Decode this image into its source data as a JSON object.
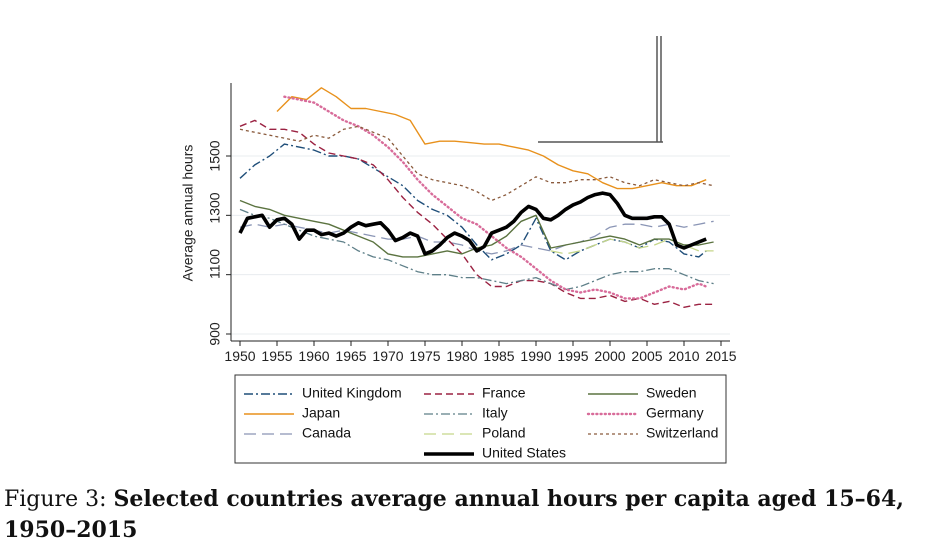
{
  "chart_data": {
    "type": "line",
    "ylabel": "Average annual hours",
    "xlabel": "",
    "xlim": [
      1950,
      2015
    ],
    "ylim": [
      900,
      1700
    ],
    "x_ticks": [
      "1950",
      "1955",
      "1960",
      "1965",
      "1970",
      "1975",
      "1980",
      "1985",
      "1990",
      "1995",
      "2000",
      "2005",
      "2010",
      "2015"
    ],
    "y_ticks": [
      "900",
      "1100",
      "1300",
      "1500"
    ],
    "grid": true,
    "legend_position": "below",
    "series": [
      {
        "name": "United Kingdom",
        "color": "#1f4e79",
        "style": "dashdot",
        "width": 1.4,
        "x": [
          1950,
          1952,
          1954,
          1956,
          1958,
          1960,
          1962,
          1964,
          1966,
          1968,
          1970,
          1972,
          1974,
          1976,
          1978,
          1980,
          1982,
          1984,
          1986,
          1988,
          1990,
          1992,
          1994,
          1996,
          1998,
          2000,
          2002,
          2004,
          2006,
          2008,
          2010,
          2012,
          2013
        ],
        "y": [
          1425,
          1470,
          1500,
          1540,
          1530,
          1520,
          1500,
          1500,
          1490,
          1460,
          1430,
          1400,
          1350,
          1320,
          1300,
          1260,
          1200,
          1150,
          1170,
          1200,
          1290,
          1180,
          1150,
          1180,
          1200,
          1220,
          1210,
          1190,
          1220,
          1210,
          1170,
          1160,
          1180
        ]
      },
      {
        "name": "Japan",
        "color": "#e8911c",
        "style": "solid",
        "width": 1.4,
        "x": [
          1955,
          1957,
          1959,
          1961,
          1963,
          1965,
          1967,
          1969,
          1971,
          1973,
          1975,
          1977,
          1979,
          1981,
          1983,
          1985,
          1987,
          1989,
          1991,
          1993,
          1995,
          1997,
          1999,
          2001,
          2003,
          2005,
          2007,
          2009,
          2011,
          2013
        ],
        "y": [
          1650,
          1700,
          1690,
          1730,
          1700,
          1660,
          1660,
          1650,
          1640,
          1620,
          1540,
          1550,
          1550,
          1545,
          1540,
          1540,
          1530,
          1520,
          1500,
          1470,
          1450,
          1440,
          1410,
          1390,
          1390,
          1400,
          1410,
          1400,
          1400,
          1420
        ]
      },
      {
        "name": "Canada",
        "color": "#8a95b5",
        "style": "longdash",
        "width": 1.3,
        "x": [
          1950,
          1952,
          1954,
          1956,
          1958,
          1960,
          1962,
          1964,
          1966,
          1968,
          1970,
          1972,
          1974,
          1976,
          1978,
          1980,
          1982,
          1984,
          1986,
          1988,
          1990,
          1992,
          1994,
          1996,
          1998,
          2000,
          2002,
          2004,
          2006,
          2008,
          2010,
          2012,
          2014
        ],
        "y": [
          1260,
          1270,
          1260,
          1270,
          1260,
          1250,
          1240,
          1250,
          1240,
          1230,
          1220,
          1220,
          1230,
          1210,
          1210,
          1200,
          1180,
          1170,
          1180,
          1200,
          1190,
          1180,
          1200,
          1210,
          1230,
          1260,
          1270,
          1270,
          1260,
          1270,
          1260,
          1270,
          1280
        ]
      },
      {
        "name": "France",
        "color": "#9b2242",
        "style": "dashed",
        "width": 1.4,
        "x": [
          1950,
          1952,
          1954,
          1956,
          1958,
          1960,
          1962,
          1964,
          1966,
          1968,
          1970,
          1972,
          1974,
          1976,
          1978,
          1980,
          1982,
          1984,
          1986,
          1988,
          1990,
          1992,
          1994,
          1996,
          1998,
          2000,
          2002,
          2004,
          2006,
          2008,
          2010,
          2012,
          2014
        ],
        "y": [
          1600,
          1620,
          1590,
          1590,
          1580,
          1540,
          1510,
          1500,
          1490,
          1470,
          1420,
          1360,
          1310,
          1270,
          1220,
          1170,
          1100,
          1060,
          1060,
          1080,
          1080,
          1070,
          1040,
          1020,
          1020,
          1030,
          1010,
          1020,
          1000,
          1010,
          990,
          1000,
          1000
        ]
      },
      {
        "name": "Italy",
        "color": "#5e7f88",
        "style": "dashdot",
        "width": 1.3,
        "x": [
          1950,
          1952,
          1954,
          1956,
          1958,
          1960,
          1962,
          1964,
          1966,
          1968,
          1970,
          1972,
          1974,
          1976,
          1978,
          1980,
          1982,
          1984,
          1986,
          1988,
          1990,
          1992,
          1994,
          1996,
          1998,
          2000,
          2002,
          2004,
          2006,
          2008,
          2010,
          2012,
          2014
        ],
        "y": [
          1320,
          1300,
          1290,
          1270,
          1250,
          1230,
          1220,
          1210,
          1180,
          1160,
          1150,
          1130,
          1110,
          1100,
          1100,
          1090,
          1090,
          1080,
          1070,
          1080,
          1090,
          1070,
          1050,
          1060,
          1080,
          1100,
          1110,
          1110,
          1120,
          1120,
          1100,
          1080,
          1070
        ]
      },
      {
        "name": "Poland",
        "color": "#c5d68a",
        "style": "longdash",
        "width": 1.3,
        "x": [
          1992,
          1994,
          1996,
          1998,
          2000,
          2002,
          2004,
          2006,
          2008,
          2010,
          2012,
          2014
        ],
        "y": [
          1180,
          1170,
          1180,
          1200,
          1220,
          1210,
          1190,
          1200,
          1220,
          1200,
          1180,
          1180
        ]
      },
      {
        "name": "Sweden",
        "color": "#5b7340",
        "style": "solid",
        "width": 1.4,
        "x": [
          1950,
          1952,
          1954,
          1956,
          1958,
          1960,
          1962,
          1964,
          1966,
          1968,
          1970,
          1972,
          1974,
          1976,
          1978,
          1980,
          1982,
          1984,
          1986,
          1988,
          1990,
          1992,
          1994,
          1996,
          1998,
          2000,
          2002,
          2004,
          2006,
          2008,
          2010,
          2012,
          2014
        ],
        "y": [
          1350,
          1330,
          1320,
          1300,
          1290,
          1280,
          1270,
          1250,
          1230,
          1210,
          1170,
          1160,
          1160,
          1170,
          1180,
          1170,
          1190,
          1200,
          1230,
          1280,
          1300,
          1190,
          1200,
          1210,
          1220,
          1230,
          1220,
          1200,
          1220,
          1220,
          1200,
          1200,
          1210
        ]
      },
      {
        "name": "Germany",
        "color": "#d86c9a",
        "style": "dotted",
        "width": 2.4,
        "x": [
          1956,
          1958,
          1960,
          1962,
          1964,
          1966,
          1968,
          1970,
          1972,
          1974,
          1976,
          1978,
          1980,
          1982,
          1984,
          1986,
          1988,
          1990,
          1992,
          1994,
          1996,
          1998,
          2000,
          2002,
          2004,
          2006,
          2008,
          2010,
          2012,
          2013
        ],
        "y": [
          1700,
          1690,
          1680,
          1650,
          1620,
          1600,
          1570,
          1530,
          1480,
          1420,
          1370,
          1330,
          1290,
          1270,
          1230,
          1190,
          1160,
          1120,
          1080,
          1050,
          1040,
          1050,
          1040,
          1020,
          1020,
          1040,
          1060,
          1050,
          1070,
          1060
        ]
      },
      {
        "name": "Switzerland",
        "color": "#8a5a3c",
        "style": "shortdash",
        "width": 1.3,
        "x": [
          1950,
          1952,
          1954,
          1956,
          1958,
          1960,
          1962,
          1964,
          1966,
          1968,
          1970,
          1972,
          1974,
          1976,
          1978,
          1980,
          1982,
          1984,
          1986,
          1988,
          1990,
          1992,
          1994,
          1996,
          1998,
          2000,
          2002,
          2004,
          2006,
          2008,
          2010,
          2012,
          2014
        ],
        "y": [
          1590,
          1580,
          1570,
          1560,
          1550,
          1570,
          1560,
          1590,
          1600,
          1580,
          1560,
          1500,
          1440,
          1420,
          1410,
          1400,
          1380,
          1350,
          1370,
          1400,
          1430,
          1410,
          1410,
          1420,
          1420,
          1430,
          1410,
          1400,
          1420,
          1410,
          1400,
          1410,
          1400
        ]
      },
      {
        "name": "United States",
        "color": "#000000",
        "style": "solid",
        "width": 3.6,
        "x": [
          1950,
          1951,
          1952,
          1953,
          1954,
          1955,
          1956,
          1957,
          1958,
          1959,
          1960,
          1961,
          1962,
          1963,
          1964,
          1965,
          1966,
          1967,
          1968,
          1969,
          1970,
          1971,
          1972,
          1973,
          1974,
          1975,
          1976,
          1977,
          1978,
          1979,
          1980,
          1981,
          1982,
          1983,
          1984,
          1985,
          1986,
          1987,
          1988,
          1989,
          1990,
          1991,
          1992,
          1993,
          1994,
          1995,
          1996,
          1997,
          1998,
          1999,
          2000,
          2001,
          2002,
          2003,
          2004,
          2005,
          2006,
          2007,
          2008,
          2009,
          2010,
          2011,
          2012,
          2013
        ],
        "y": [
          1240,
          1290,
          1295,
          1300,
          1260,
          1285,
          1290,
          1270,
          1220,
          1250,
          1250,
          1235,
          1240,
          1230,
          1240,
          1260,
          1275,
          1265,
          1270,
          1275,
          1250,
          1215,
          1225,
          1240,
          1230,
          1170,
          1180,
          1200,
          1225,
          1240,
          1230,
          1215,
          1180,
          1195,
          1240,
          1250,
          1260,
          1280,
          1310,
          1330,
          1320,
          1290,
          1285,
          1300,
          1320,
          1335,
          1345,
          1360,
          1370,
          1375,
          1370,
          1340,
          1300,
          1290,
          1290,
          1290,
          1295,
          1295,
          1270,
          1200,
          1190,
          1200,
          1210,
          1220
        ]
      }
    ]
  },
  "legend": {
    "rows": [
      [
        "United Kingdom",
        "France",
        "Sweden"
      ],
      [
        "Japan",
        "Italy",
        "Germany"
      ],
      [
        "Canada",
        "Poland",
        "Switzerland"
      ],
      [
        "",
        "United States",
        ""
      ]
    ]
  },
  "caption": {
    "prefix": "Figure 3: ",
    "text": "Selected countries average annual hours per capita aged 15–64, 1950–2015"
  }
}
